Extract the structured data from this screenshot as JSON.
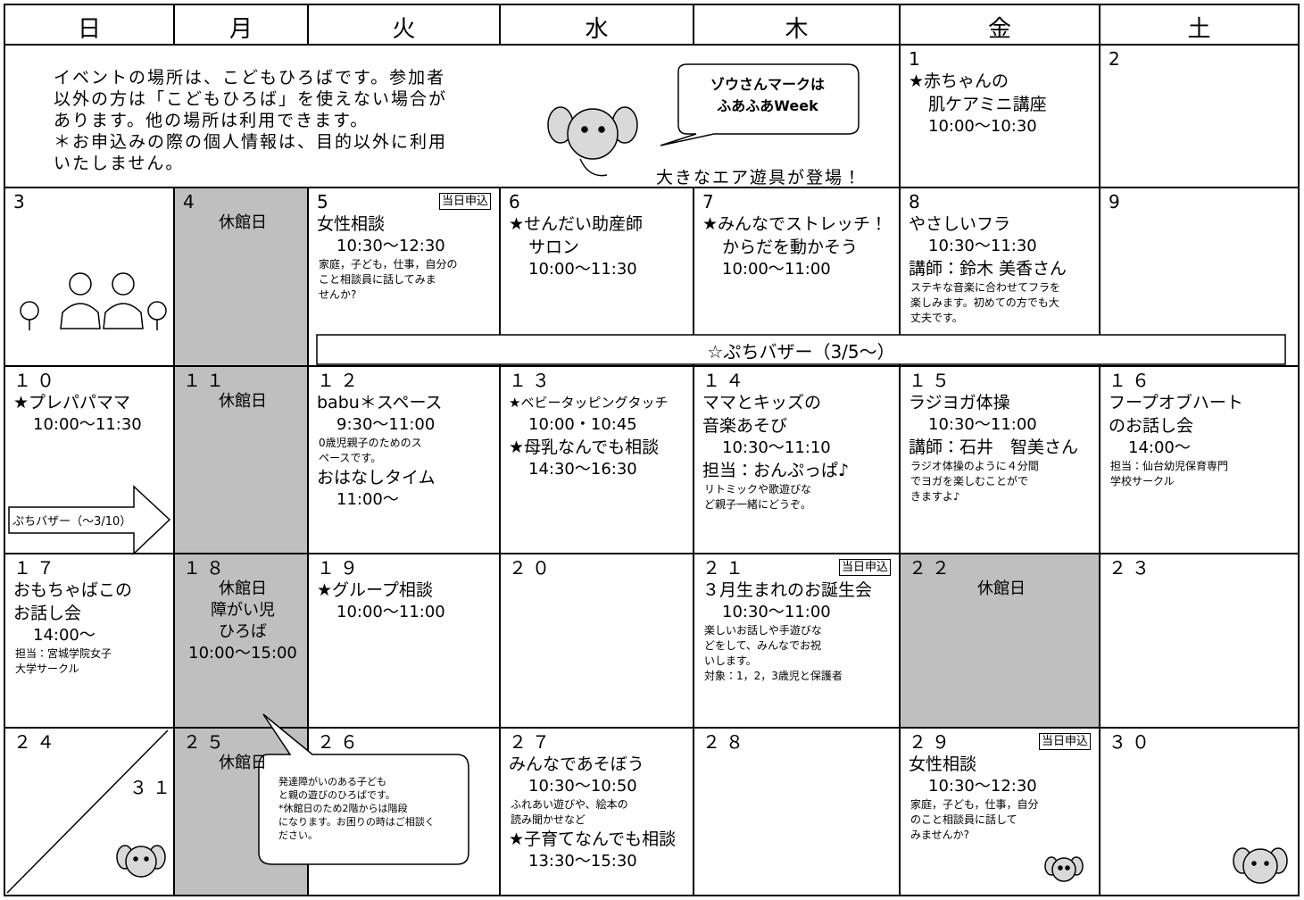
{
  "weekdays": [
    "日",
    "月",
    "火",
    "水",
    "木",
    "金",
    "土"
  ],
  "notice": [
    "イベントの場所は、こどもひろばです。参加者",
    "以外の方は「こどもひろば」を使えない場合が",
    "あります。他の場所は利用できます。",
    "＊お申込みの際の個人情報は、目的以外に利用",
    "いたしません。"
  ],
  "bubble": [
    "ゾウさんマークは",
    "ふあふあWeek"
  ],
  "caption": "大きなエア遊具が登場！",
  "banner": "☆ぷちバザー（3/5～）",
  "arrow": "ぷちバザー（～3/10）",
  "callout": [
    "発達障がいのある子ども",
    "と親の遊びのひろばです。",
    "*休館日のため2階からは階段",
    "になります。お困りの時はご相談く",
    "ださい。"
  ],
  "cells": [
    {
      "day": "1",
      "lines": [
        "★赤ちゃんの",
        "肌ケアミニ講座",
        "10:00～10:30"
      ]
    },
    {
      "day": "2"
    },
    {
      "day": "3"
    },
    {
      "day": "4",
      "lines": [
        "休館日"
      ]
    },
    {
      "day": "5",
      "tag": "当日申込",
      "lines": [
        "女性相談",
        "10:30～12:30",
        "家庭，子ども，仕事，自分の",
        "こと相談員に話してみま",
        "せんか?"
      ]
    },
    {
      "day": "6",
      "lines": [
        "★せんだい助産師",
        "サロン",
        "10:00～11:30"
      ]
    },
    {
      "day": "7",
      "lines": [
        "★みんなでストレッチ！",
        "からだを動かそう",
        "10:00～11:00"
      ]
    },
    {
      "day": "8",
      "lines": [
        "やさしいフラ",
        "10:30～11:30",
        "講師：鈴木 美香さん",
        "ステキな音楽に合わせてフラを",
        "楽しみます。初めての方でも大",
        "丈夫です。"
      ]
    },
    {
      "day": "9"
    },
    {
      "day": "１０",
      "lines": [
        "★プレパパママ",
        "10:00～11:30"
      ]
    },
    {
      "day": "１１",
      "lines": [
        "休館日"
      ]
    },
    {
      "day": "１２",
      "lines": [
        "babu＊スペース",
        "9:30～11:00",
        "0歳児親子のためのス",
        "ペースです。",
        "おはなしタイム",
        "11:00～"
      ]
    },
    {
      "day": "１３",
      "lines": [
        "★ベビータッピングタッチ",
        "10:00・10:45",
        "★母乳なんでも相談",
        "14:30～16:30"
      ]
    },
    {
      "day": "１４",
      "lines": [
        "ママとキッズの",
        "音楽あそび",
        "10:30～11:10",
        "担当：おんぷっぱ♪",
        "リトミックや歌遊びな",
        "ど親子一緒にどうぞ。"
      ]
    },
    {
      "day": "１５",
      "lines": [
        "ラジヨガ体操",
        "10:30～11:00",
        "講師：石井　智美さん",
        "ラジオ体操のように４分間",
        "でヨガを楽しむことがで",
        "きますよ♪"
      ]
    },
    {
      "day": "１６",
      "lines": [
        "フープオブハート",
        "のお話し会",
        "14:00～",
        "担当：仙台幼児保育専門",
        "学校サークル"
      ]
    },
    {
      "day": "１７",
      "lines": [
        "おもちゃばこの",
        "お話し会",
        "14:00～",
        "担当：宮城学院女子",
        "大学サークル"
      ]
    },
    {
      "day": "１８",
      "lines": [
        "休館日",
        "障がい児",
        "ひろば",
        "10:00～15:00"
      ]
    },
    {
      "day": "１９",
      "lines": [
        "★グループ相談",
        "10:00～11:00"
      ]
    },
    {
      "day": "２０"
    },
    {
      "day": "２１",
      "tag": "当日申込",
      "lines": [
        "３月生まれのお誕生会",
        "10:30～11:00",
        "楽しいお話しや手遊びな",
        "どをして、みんなでお祝",
        "いします。",
        "対象：1，2，3歳児と保護者"
      ]
    },
    {
      "day": "２２",
      "lines": [
        "休館日"
      ]
    },
    {
      "day": "２３"
    },
    {
      "day": "２４",
      "day2": "３１"
    },
    {
      "day": "２５",
      "lines": [
        "休館日"
      ]
    },
    {
      "day": "２６"
    },
    {
      "day": "２７",
      "lines": [
        "みんなであそぼう",
        "10:30～10:50",
        "ふれあい遊びや、絵本の",
        "読み聞かせなど",
        "★子育てなんでも相談",
        "13:30～15:30"
      ]
    },
    {
      "day": "２８"
    },
    {
      "day": "２９",
      "tag": "当日申込",
      "lines": [
        "女性相談",
        "10:30～12:30",
        "家庭，子ども，仕事，自分",
        "のこと相談員に話して",
        "みませんか?"
      ]
    },
    {
      "day": "３０"
    }
  ]
}
